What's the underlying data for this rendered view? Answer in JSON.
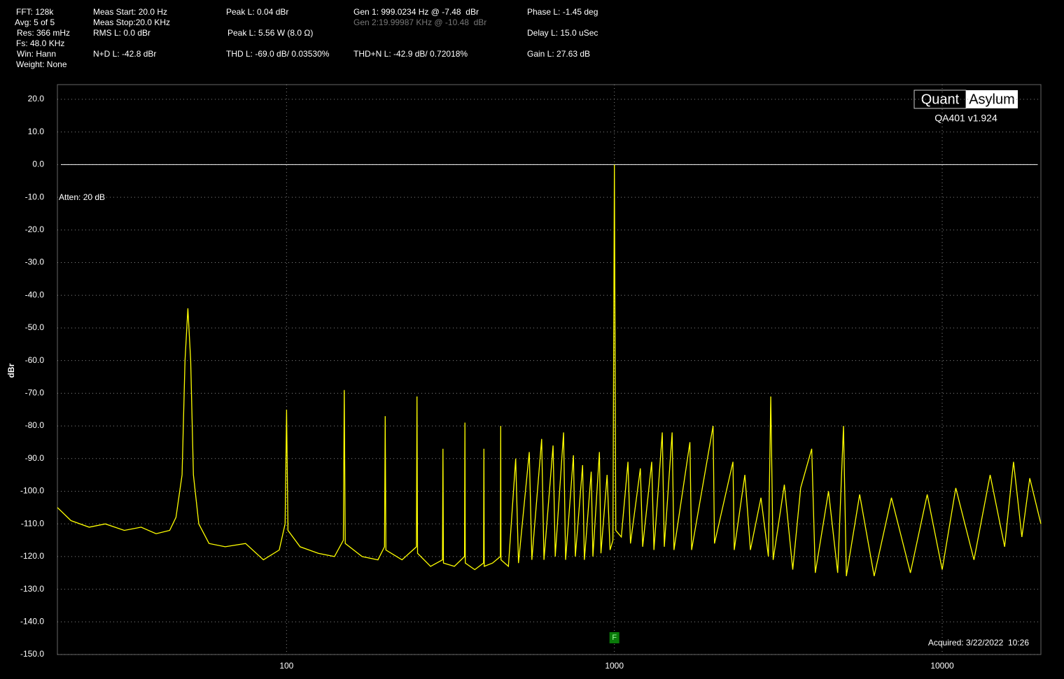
{
  "readouts": [
    "FFT: 128k",
    "Avg: 5 of 5",
    "Res: 366 mHz",
    "Fs: 48.0 KHz",
    "Win: Hann",
    "Weight: None",
    "Meas Start: 20.0 Hz",
    "Meas Stop:20.0 KHz",
    "RMS L: 0.0 dBr",
    "N+D L: -42.8 dBr",
    "Peak L: 0.04 dBr",
    "Peak L: 5.56 W (8.0 Ω)",
    "THD L: -69.0 dB/ 0.03530%",
    "Gen 1: 999.0234 Hz @ -7.48  dBr",
    "Gen 2:19.99987 KHz @ -10.48  dBr",
    "THD+N L: -42.9 dB/ 0.72018%",
    "Phase L: -1.45 deg",
    "Delay L: 15.0 uSec",
    "Gain L: 27.63 dB"
  ],
  "logo": {
    "left": "Quant",
    "right": "Asylum",
    "version": "QA401 v1.924"
  },
  "chart_data": {
    "type": "line",
    "ylabel": "dBr",
    "xscale": "log",
    "grid": true,
    "annotations": {
      "atten": "Atten: 20 dB",
      "acquired": "Acquired: 3/22/2022  10:26",
      "marker": "F"
    },
    "reference_level": 0,
    "xlim": [
      20,
      20000
    ],
    "ylim": [
      -150,
      24.5
    ],
    "xticks": [
      100,
      1000,
      10000
    ],
    "yticks": [
      {
        "value": 20,
        "label": "20.0"
      },
      {
        "value": 10,
        "label": "10.0"
      },
      {
        "value": 0,
        "label": "0.0"
      },
      {
        "value": -10,
        "label": "-10.0"
      },
      {
        "value": -20,
        "label": "-20.0"
      },
      {
        "value": -30,
        "label": "-30.0"
      },
      {
        "value": -40,
        "label": "-40.0"
      },
      {
        "value": -50,
        "label": "-50.0"
      },
      {
        "value": -60,
        "label": "-60.0"
      },
      {
        "value": -70,
        "label": "-70.0"
      },
      {
        "value": -80,
        "label": "-80.0"
      },
      {
        "value": -90,
        "label": "-90.0"
      },
      {
        "value": -100,
        "label": "-100.0"
      },
      {
        "value": -110,
        "label": "-110.0"
      },
      {
        "value": -120,
        "label": "-120.0"
      },
      {
        "value": -130,
        "label": "-130.0"
      },
      {
        "value": -140,
        "label": "-140.0"
      },
      {
        "value": -150,
        "label": "-150.0"
      }
    ],
    "x": [
      20,
      22,
      25,
      28,
      32,
      36,
      40,
      44,
      46,
      48,
      49,
      50,
      51,
      52,
      54,
      58,
      65,
      75,
      85,
      95,
      99,
      100,
      101,
      110,
      125,
      140,
      149,
      150,
      151,
      170,
      190,
      199,
      200,
      201,
      225,
      249,
      250,
      251,
      275,
      299,
      300,
      301,
      325,
      349,
      350,
      351,
      375,
      399,
      400,
      401,
      425,
      449,
      450,
      451,
      475,
      500,
      510,
      550,
      560,
      600,
      610,
      650,
      660,
      700,
      710,
      750,
      760,
      800,
      810,
      850,
      860,
      900,
      910,
      950,
      970,
      990,
      1000,
      1010,
      1050,
      1100,
      1120,
      1200,
      1220,
      1300,
      1320,
      1400,
      1420,
      1500,
      1520,
      1700,
      1720,
      2000,
      2020,
      2300,
      2320,
      2500,
      2600,
      2800,
      2950,
      3000,
      3050,
      3300,
      3500,
      3700,
      4000,
      4100,
      4500,
      4800,
      5000,
      5100,
      5600,
      6200,
      7000,
      8000,
      9000,
      10000,
      11000,
      12500,
      14000,
      15500,
      16500,
      17500,
      18500,
      20000
    ],
    "series": [
      {
        "color": "#ffff00",
        "values": [
          -105,
          -109,
          -111,
          -110,
          -112,
          -111,
          -113,
          -112,
          -108,
          -95,
          -60,
          -44,
          -60,
          -95,
          -110,
          -116,
          -117,
          -116,
          -121,
          -118,
          -110,
          -75,
          -112,
          -117,
          -119,
          -120,
          -115,
          -69,
          -116,
          -120,
          -121,
          -117,
          -77,
          -118,
          -121,
          -117,
          -71,
          -119,
          -123,
          -121,
          -87,
          -122,
          -123,
          -120,
          -79,
          -122,
          -124,
          -122,
          -87,
          -123,
          -122,
          -120,
          -80,
          -121,
          -123,
          -90,
          -122,
          -88,
          -121,
          -84,
          -121,
          -86,
          -120,
          -82,
          -121,
          -89,
          -120,
          -92,
          -121,
          -94,
          -120,
          -88,
          -119,
          -95,
          -118,
          -115,
          0,
          -112,
          -114,
          -91,
          -116,
          -93,
          -117,
          -91,
          -118,
          -82,
          -117,
          -82,
          -118,
          -85,
          -118,
          -80,
          -116,
          -91,
          -118,
          -95,
          -118,
          -102,
          -120,
          -71,
          -121,
          -98,
          -124,
          -99,
          -87,
          -125,
          -100,
          -125,
          -80,
          -126,
          -101,
          -126,
          -102,
          -125,
          -101,
          -124,
          -99,
          -121,
          -95,
          -117,
          -91,
          -114,
          -96,
          -110
        ]
      }
    ]
  }
}
